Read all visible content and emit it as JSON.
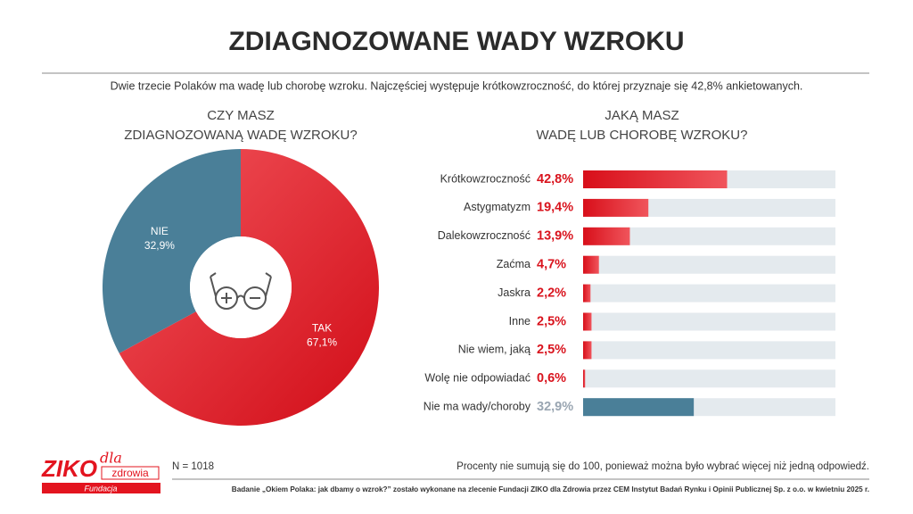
{
  "title": "ZDIAGNOZOWANE WADY WZROKU",
  "subtitle": "Dwie trzecie Polaków ma wadę lub chorobę wzroku. Najczęściej występuje krótkowzroczność, do której przyznaje się 42,8% ankietowanych.",
  "chart_data": [
    {
      "type": "pie",
      "title": "CZY MASZ\nZDIAGNOZOWANĄ WADĘ WZROKU?",
      "categories": [
        "TAK",
        "NIE"
      ],
      "values": [
        67.1,
        32.9
      ],
      "value_labels": [
        "67,1%",
        "32,9%"
      ],
      "colors": [
        "#e3141f",
        "#4a7f98"
      ],
      "donut": true
    },
    {
      "type": "hbar",
      "title": "JAKĄ MASZ\nWADĘ LUB CHOROBĘ WZROKU?",
      "categories": [
        "Krótkowzroczność",
        "Astygmatyzm",
        "Dalekowzroczność",
        "Zaćma",
        "Jaskra",
        "Inne",
        "Nie wiem, jaką",
        "Wolę nie odpowiadać",
        "Nie ma wady/choroby"
      ],
      "values": [
        42.8,
        19.4,
        13.9,
        4.7,
        2.2,
        2.5,
        2.5,
        0.6,
        32.9
      ],
      "value_labels": [
        "42,8%",
        "19,4%",
        "13,9%",
        "4,7%",
        "2,2%",
        "2,5%",
        "2,5%",
        "0,6%",
        "32,9%"
      ],
      "colors": [
        "#e3141f",
        "#e3141f",
        "#e3141f",
        "#e3141f",
        "#e3141f",
        "#e3141f",
        "#e3141f",
        "#e3141f",
        "#4a7f98"
      ],
      "value_label_colors": [
        "#d9141e",
        "#d9141e",
        "#d9141e",
        "#d9141e",
        "#d9141e",
        "#d9141e",
        "#d9141e",
        "#d9141e",
        "#9aa6b2"
      ],
      "track_color": "#e4eaee",
      "xlim": [
        0,
        75
      ]
    }
  ],
  "sample_size": "N = 1018",
  "note": "Procenty nie sumują się do 100, ponieważ można było wybrać więcej niż jedną odpowiedź.",
  "source": "Badanie „Okiem Polaka: jak dbamy o wzrok?” zostało wykonane na zlecenie Fundacji ZIKO dla Zdrowia przez CEM Instytut Badań Rynku i Opinii Publicznej Sp. z o.o. w kwietniu 2025 r.",
  "logo": {
    "brand": "ZIKO",
    "dla": "dla",
    "zdrowia": "zdrowia",
    "fundacja": "Fundacja"
  }
}
